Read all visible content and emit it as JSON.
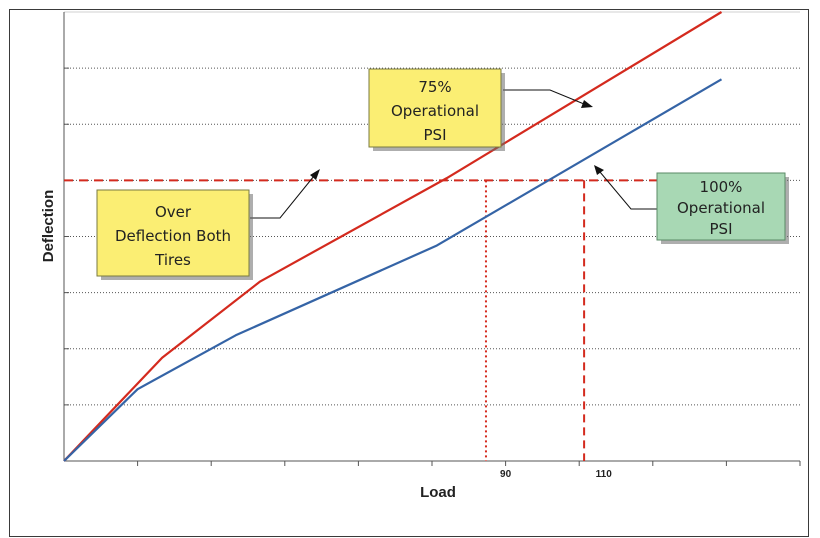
{
  "chart_data": {
    "type": "line",
    "xlabel": "Load",
    "ylabel": "Deflection",
    "xlim": [
      0,
      150
    ],
    "ylim": [
      0,
      100
    ],
    "grid": {
      "horizontal": true,
      "style": "dotted"
    },
    "x_tick_labels": [
      {
        "value": 90,
        "label": "90"
      },
      {
        "value": 110,
        "label": "110"
      }
    ],
    "series": [
      {
        "name": "75% Operational PSI",
        "color": "#d42a1e",
        "x": [
          0,
          20,
          40,
          78,
          134
        ],
        "y": [
          0,
          23,
          40,
          63,
          100
        ]
      },
      {
        "name": "100% Operational PSI",
        "color": "#3564a6",
        "x": [
          0,
          15,
          35,
          76,
          134
        ],
        "y": [
          0,
          16,
          28,
          48,
          85
        ]
      }
    ],
    "threshold": {
      "y": 62.5,
      "color": "#d42a1e",
      "style": "dashed"
    },
    "drop_lines": [
      {
        "x": 86,
        "style": "dotted",
        "color": "#d42a1e"
      },
      {
        "x": 106,
        "style": "dashed",
        "color": "#d42a1e"
      }
    ],
    "annotations": [
      {
        "lines": [
          "75%",
          "Operational",
          "PSI"
        ],
        "fill": "#fbee73"
      },
      {
        "lines": [
          "100%",
          "Operational",
          "PSI"
        ],
        "fill": "#a8d8b4"
      },
      {
        "lines": [
          "Over",
          "Deflection Both",
          "Tires"
        ],
        "fill": "#fbee73"
      }
    ]
  }
}
